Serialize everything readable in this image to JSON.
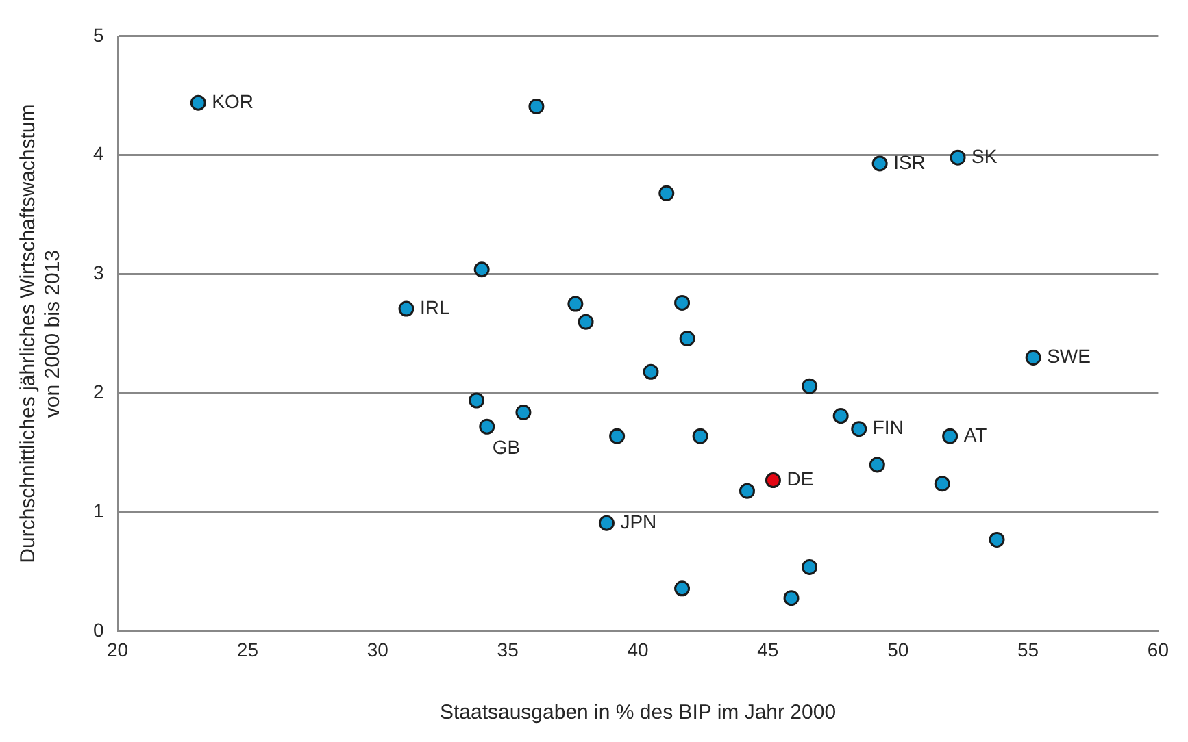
{
  "chart_data": {
    "type": "scatter",
    "xlabel": "Staatsausgaben in % des BIP im Jahr 2000",
    "ylabel": "Durchschnittliches jährliches Wirtschaftswachstum\nvon 2000 bis 2013",
    "x": [
      23.1,
      36.1,
      41.1,
      49.3,
      52.3,
      34.0,
      31.1,
      37.6,
      38.0,
      41.7,
      41.9,
      40.5,
      33.8,
      35.6,
      34.2,
      39.2,
      38.8,
      46.6,
      47.8,
      48.5,
      52.0,
      42.4,
      49.2,
      45.2,
      44.2,
      51.7,
      55.2,
      53.8,
      46.6,
      41.7,
      45.9
    ],
    "values": [
      4.44,
      4.41,
      3.68,
      3.93,
      3.98,
      3.04,
      2.71,
      2.75,
      2.6,
      2.76,
      2.46,
      2.18,
      1.94,
      1.84,
      1.72,
      1.64,
      0.91,
      2.06,
      1.81,
      1.7,
      1.64,
      1.64,
      1.4,
      1.27,
      1.18,
      1.24,
      2.3,
      0.77,
      0.54,
      0.36,
      0.28
    ],
    "colors": [
      "#0f96cc",
      "#0f96cc",
      "#0f96cc",
      "#0f96cc",
      "#0f96cc",
      "#0f96cc",
      "#0f96cc",
      "#0f96cc",
      "#0f96cc",
      "#0f96cc",
      "#0f96cc",
      "#0f96cc",
      "#0f96cc",
      "#0f96cc",
      "#0f96cc",
      "#0f96cc",
      "#0f96cc",
      "#0f96cc",
      "#0f96cc",
      "#0f96cc",
      "#0f96cc",
      "#0f96cc",
      "#0f96cc",
      "#e30613",
      "#0f96cc",
      "#0f96cc",
      "#0f96cc",
      "#0f96cc",
      "#0f96cc",
      "#0f96cc",
      "#0f96cc"
    ],
    "marker": "circle",
    "xlim": [
      20,
      60
    ],
    "xticks": [
      20,
      25,
      30,
      35,
      40,
      45,
      50,
      55,
      60
    ],
    "ylim": [
      0,
      5
    ],
    "yticks": [
      0,
      1,
      2,
      3,
      4,
      5
    ],
    "grid": "y",
    "legend": false,
    "annotations": [
      {
        "text": "KOR",
        "x": 23.1,
        "y": 4.44
      },
      {
        "text": "ISR",
        "x": 49.3,
        "y": 3.93
      },
      {
        "text": "SK",
        "x": 52.3,
        "y": 3.98
      },
      {
        "text": "IRL",
        "x": 31.1,
        "y": 2.71
      },
      {
        "text": "SWE",
        "x": 55.2,
        "y": 2.3
      },
      {
        "text": "GB",
        "x": 34.2,
        "y": 1.72
      },
      {
        "text": "FIN",
        "x": 48.5,
        "y": 1.7
      },
      {
        "text": "AT",
        "x": 52.0,
        "y": 1.64
      },
      {
        "text": "DE",
        "x": 45.2,
        "y": 1.27
      },
      {
        "text": "JPN",
        "x": 38.8,
        "y": 0.91
      }
    ]
  }
}
